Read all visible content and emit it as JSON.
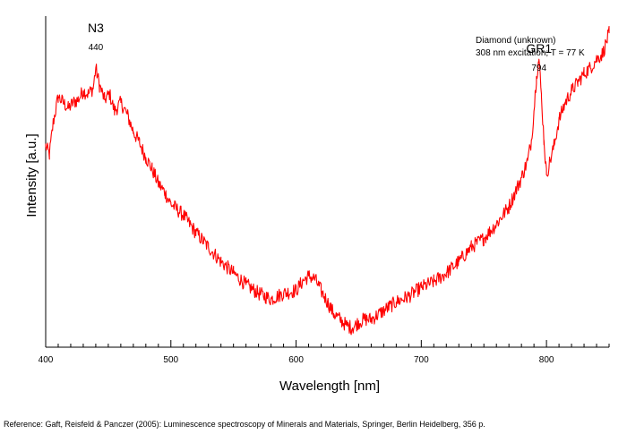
{
  "chart_data": {
    "type": "line",
    "xlabel": "Wavelength [nm]",
    "ylabel": "Intensity [a.u.]",
    "xlim": [
      400,
      850
    ],
    "ylim": [
      0,
      100
    ],
    "y_ticks_labeled": false,
    "grid": false,
    "x_ticks": [
      400,
      500,
      600,
      700,
      800
    ],
    "line_color": "#ff0000",
    "info_text": [
      "Diamond (unknown)",
      "308 nm excitation; T = 77 K"
    ],
    "annotations": [
      {
        "name": "N3",
        "value": "440",
        "x": 440,
        "y": 95
      },
      {
        "name": "GR1",
        "value": "794",
        "x": 794,
        "y": 88
      }
    ],
    "series": [
      {
        "x": [
          400,
          403,
          406,
          410,
          414,
          418,
          422,
          426,
          430,
          434,
          438,
          440,
          443,
          447,
          451,
          455,
          460,
          465,
          470,
          475,
          480,
          485,
          490,
          495,
          500,
          510,
          520,
          530,
          540,
          550,
          560,
          570,
          580,
          590,
          600,
          605,
          610,
          615,
          620,
          625,
          630,
          635,
          640,
          645,
          650,
          655,
          660,
          670,
          680,
          690,
          700,
          710,
          720,
          730,
          740,
          750,
          760,
          770,
          775,
          780,
          785,
          788,
          790,
          792,
          794,
          796,
          798,
          800,
          803,
          806,
          810,
          815,
          820,
          825,
          830,
          835,
          840,
          845,
          850
        ],
        "y": [
          65,
          62,
          73,
          82,
          80,
          78,
          80,
          81,
          84,
          83,
          85,
          92,
          86,
          81,
          83,
          77,
          80,
          76,
          70,
          66,
          61,
          57,
          52,
          49,
          45,
          41,
          35,
          30,
          25,
          21,
          17,
          14,
          12,
          14,
          15,
          18,
          20,
          19,
          15,
          11,
          7,
          5,
          3,
          2,
          4,
          5,
          5,
          8,
          11,
          13,
          16,
          18,
          21,
          25,
          30,
          33,
          38,
          44,
          49,
          54,
          60,
          67,
          77,
          89,
          95,
          82,
          67,
          55,
          60,
          65,
          74,
          80,
          84,
          87,
          90,
          92,
          95,
          97,
          104
        ]
      }
    ]
  },
  "reference": "Reference: Gaft, Reisfeld & Panczer (2005): Luminescence spectroscopy of Minerals and Materials, Springer, Berlin Heidelberg, 356 p."
}
